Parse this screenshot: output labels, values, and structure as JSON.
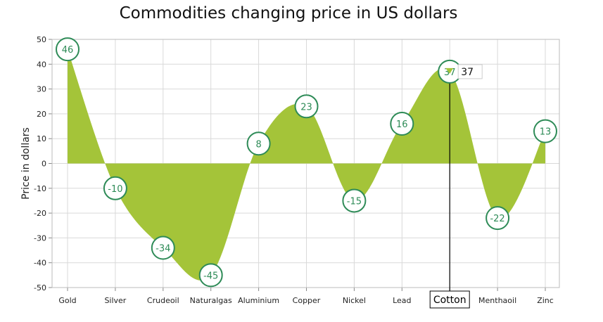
{
  "chart_data": {
    "type": "area",
    "title": "Commodities changing price in US dollars",
    "xlabel": "",
    "ylabel": "Price in dollars",
    "categories": [
      "Gold",
      "Silver",
      "Crudeoil",
      "Naturalgas",
      "Aluminium",
      "Copper",
      "Nickel",
      "Lead",
      "Cotton",
      "Menthaoil",
      "Zinc"
    ],
    "values": [
      46,
      -10,
      -34,
      -45,
      8,
      23,
      -15,
      16,
      37,
      -22,
      13
    ],
    "ylim": [
      -50,
      50
    ],
    "yticks": [
      50,
      40,
      30,
      20,
      10,
      0,
      -10,
      -20,
      -30,
      -40,
      -50
    ],
    "grid": true,
    "legend": "none",
    "crosshair": {
      "category": "Cotton",
      "value": 37,
      "value_label": "37"
    },
    "colors": {
      "area": "#a4c439",
      "marker_border": "#2e8b57",
      "label_text": "#2e8b57",
      "grid": "#d9d9d9"
    }
  }
}
